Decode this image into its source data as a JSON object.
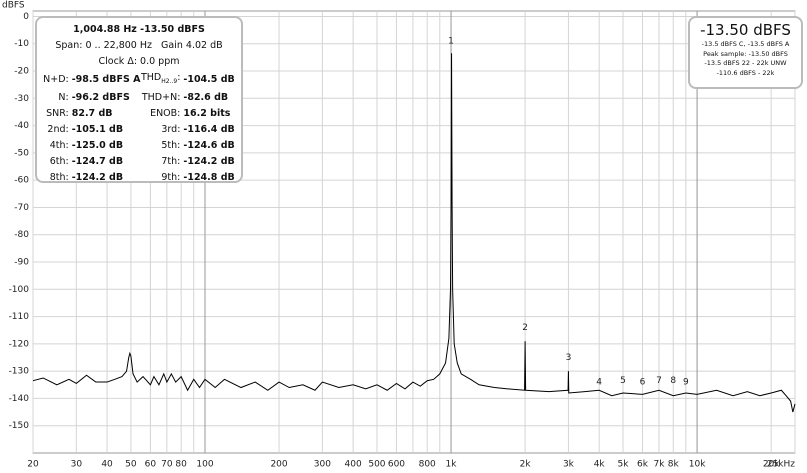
{
  "chart_data": {
    "type": "line",
    "y_label": "dBFS",
    "log_x": true,
    "grid": true,
    "color": "#000000",
    "xlim": [
      20,
      25000
    ],
    "ylim": [
      -160,
      2
    ],
    "xticks": [
      20,
      30,
      40,
      50,
      60,
      70,
      80,
      100,
      200,
      300,
      400,
      500,
      600,
      800,
      {
        "value": 1000,
        "label": "1k"
      },
      {
        "value": 2000,
        "label": "2k"
      },
      {
        "value": 3000,
        "label": "3k"
      },
      {
        "value": 4000,
        "label": "4k"
      },
      {
        "value": 5000,
        "label": "5k"
      },
      {
        "value": 6000,
        "label": "6k"
      },
      {
        "value": 7000,
        "label": "7k"
      },
      {
        "value": 8000,
        "label": "8k"
      },
      {
        "value": 10000,
        "label": "10k"
      },
      {
        "value": 20000,
        "label": "20k"
      },
      {
        "value": 25000,
        "label": "25kHz"
      }
    ],
    "x_minor_grid": [
      90,
      700,
      900,
      9000
    ],
    "x_major_grid": [
      100,
      1000,
      10000
    ],
    "yticks": [
      0,
      -10,
      -20,
      -30,
      -40,
      -50,
      -60,
      -70,
      -80,
      -90,
      -100,
      -110,
      -120,
      -130,
      -140,
      -150
    ],
    "x": [
      20,
      22,
      25,
      28,
      30,
      33,
      36,
      40,
      43,
      46,
      48,
      49,
      49.5,
      50,
      51,
      53,
      56,
      60,
      62,
      65,
      68,
      70,
      73,
      76,
      80,
      85,
      90,
      95,
      100,
      110,
      120,
      140,
      160,
      180,
      200,
      220,
      250,
      280,
      300,
      350,
      400,
      450,
      500,
      550,
      600,
      650,
      700,
      750,
      800,
      850,
      900,
      950,
      980,
      995,
      1000,
      1004.88,
      1010,
      1015,
      1030,
      1060,
      1100,
      1200,
      1300,
      1500,
      1700,
      1990,
      2000,
      2010,
      2500,
      2990,
      3000,
      3010,
      3500,
      4000,
      4500,
      5000,
      6000,
      7000,
      8000,
      9000,
      10000,
      12000,
      14000,
      16000,
      18000,
      20000,
      22000,
      23000,
      24000,
      24500,
      25000
    ],
    "values": [
      -133.5,
      -132.5,
      -135,
      -133,
      -134.5,
      -131.5,
      -134,
      -134,
      -133,
      -132,
      -130,
      -125,
      -123.5,
      -124.5,
      -131,
      -134,
      -132,
      -135,
      -132,
      -135,
      -131,
      -134,
      -131,
      -134,
      -132,
      -137,
      -133,
      -136,
      -133,
      -136,
      -133,
      -136,
      -134,
      -137,
      -134,
      -136,
      -135,
      -137,
      -134,
      -136,
      -135,
      -136.5,
      -135,
      -137,
      -134.5,
      -136.5,
      -134,
      -135.5,
      -133.5,
      -133,
      -131,
      -127,
      -118,
      -100,
      -70,
      -13.5,
      -70,
      -100,
      -120,
      -127,
      -131,
      -133,
      -135,
      -136,
      -136.5,
      -137,
      -119,
      -137,
      -137.5,
      -137,
      -130,
      -138,
      -137.5,
      -137,
      -139,
      -138,
      -138.5,
      -137,
      -139,
      -138,
      -138.5,
      -137,
      -139,
      -137.5,
      -139,
      -138,
      -137,
      -139,
      -141,
      -145,
      -142
    ],
    "annotations": [
      {
        "text": "1",
        "x": 1000,
        "y": -9
      },
      {
        "text": "2",
        "x": 2000,
        "y": -114
      },
      {
        "text": "3",
        "x": 3000,
        "y": -125
      },
      {
        "text": "4",
        "x": 4000,
        "y": -134
      },
      {
        "text": "5",
        "x": 5000,
        "y": -133.5
      },
      {
        "text": "6",
        "x": 6000,
        "y": -134
      },
      {
        "text": "7",
        "x": 7000,
        "y": -133.5
      },
      {
        "text": "8",
        "x": 8000,
        "y": -133.5
      },
      {
        "text": "9",
        "x": 9000,
        "y": -134
      }
    ]
  },
  "info_box": {
    "headline": "1,004.88 Hz  -13.50 dBFS",
    "span": "Span: 0 .. 22,800 Hz   Gain 4.02 dB",
    "clock": "Clock Δ: 0.0 ppm",
    "rows": [
      [
        "N+D:",
        "-98.5 dBFS A",
        "THD",
        "H2..9",
        ":",
        "-104.5 dB"
      ],
      [
        "N:",
        "-96.2 dBFS",
        "THD+N:",
        "",
        "",
        "-82.6 dB"
      ],
      [
        "SNR:",
        "82.7 dB",
        "ENOB:",
        "",
        "",
        "16.2 bits"
      ],
      [
        "2nd:",
        "-105.1 dB",
        "3rd:",
        "",
        "",
        "-116.4 dB"
      ],
      [
        "4th:",
        "-125.0 dB",
        "5th:",
        "",
        "",
        "-124.6 dB"
      ],
      [
        "6th:",
        "-124.7 dB",
        "7th:",
        "",
        "",
        "-124.2 dB"
      ],
      [
        "8th:",
        "-124.2 dB",
        "9th:",
        "",
        "",
        "-124.8 dB"
      ]
    ]
  },
  "level_box": {
    "level": "-13.50 dBFS",
    "lines": [
      "-13.5 dBFS C, -13.5 dBFS A",
      "Peak sample: -13.50 dBFS",
      "-13.5 dBFS 22 - 22k UNW",
      "-110.6 dBFS - 22k"
    ]
  }
}
